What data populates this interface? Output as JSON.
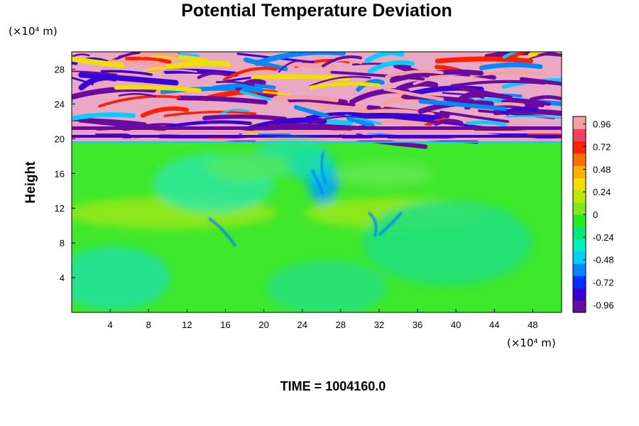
{
  "chart_data": {
    "type": "heatmap",
    "title": "Potential Temperature Deviation",
    "ylabel": "Height",
    "x_unit": "(×10⁴ m)",
    "y_unit": "(×10⁴ m)",
    "x_ticks": [
      4,
      8,
      12,
      16,
      20,
      24,
      28,
      32,
      36,
      40,
      44,
      48
    ],
    "y_ticks": [
      4,
      8,
      12,
      16,
      20,
      24,
      28
    ],
    "xlim": [
      0,
      51
    ],
    "ylim": [
      0,
      30
    ],
    "colorbar": {
      "ticks": [
        0.96,
        0.72,
        0.48,
        0.24,
        0,
        -0.24,
        -0.48,
        -0.72,
        -0.96
      ],
      "tick_labels": [
        "0.96",
        "0.72",
        "0.48",
        "0.24",
        "0",
        "-0.24",
        "-0.48",
        "-0.72",
        "-0.96"
      ],
      "range": [
        -1.04,
        1.04
      ],
      "colormap": [
        "#6a0aa0",
        "#3a00d8",
        "#0030ff",
        "#0088ff",
        "#00d0ff",
        "#00f0c0",
        "#00e878",
        "#2ae820",
        "#7ee81a",
        "#c0e800",
        "#f0e000",
        "#ffb000",
        "#ff7000",
        "#ff2000",
        "#f04060",
        "#f4a0a0"
      ]
    },
    "annotation": "TIME = 1004160.0"
  }
}
